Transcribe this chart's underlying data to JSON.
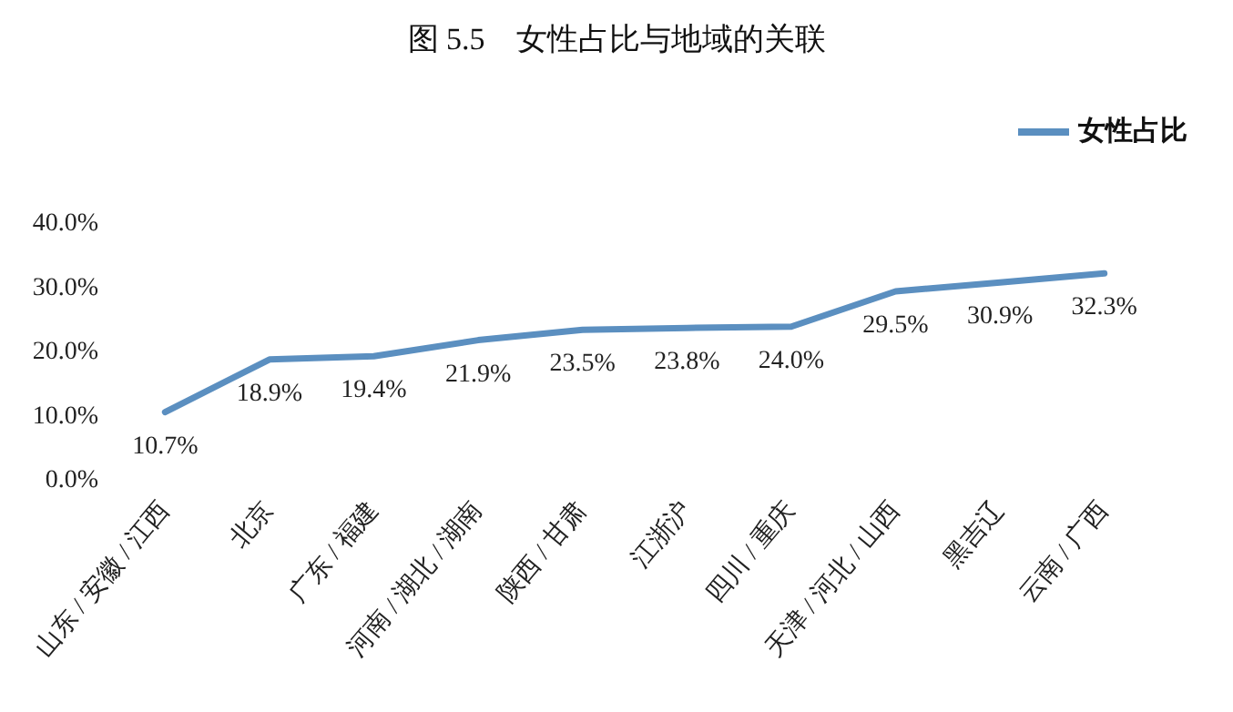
{
  "chart_data": {
    "type": "line",
    "title": "图 5.5　女性占比与地域的关联",
    "categories": [
      "山东 / 安徽 / 江西",
      "北京",
      "广东 / 福建",
      "河南 / 湖北 / 湖南",
      "陕西 / 甘肃",
      "江浙沪",
      "四川 / 重庆",
      "天津 / 河北 / 山西",
      "黑吉辽",
      "云南 / 广西"
    ],
    "series": [
      {
        "name": "女性占比",
        "color": "#5b8fc0",
        "values": [
          10.7,
          18.9,
          19.4,
          21.9,
          23.5,
          23.8,
          24.0,
          29.5,
          30.9,
          32.3
        ],
        "value_labels": [
          "10.7%",
          "18.9%",
          "19.4%",
          "21.9%",
          "23.5%",
          "23.8%",
          "24.0%",
          "29.5%",
          "30.9%",
          "32.3%"
        ]
      }
    ],
    "ylim": [
      0,
      40
    ],
    "yticks": [
      {
        "value": 0,
        "label": "0.0%"
      },
      {
        "value": 10,
        "label": "10.0%"
      },
      {
        "value": 20,
        "label": "20.0%"
      },
      {
        "value": 30,
        "label": "30.0%"
      },
      {
        "value": 40,
        "label": "40.0%"
      }
    ],
    "grid": false,
    "legend": "top right",
    "marker": "none",
    "line_style": "solid"
  }
}
